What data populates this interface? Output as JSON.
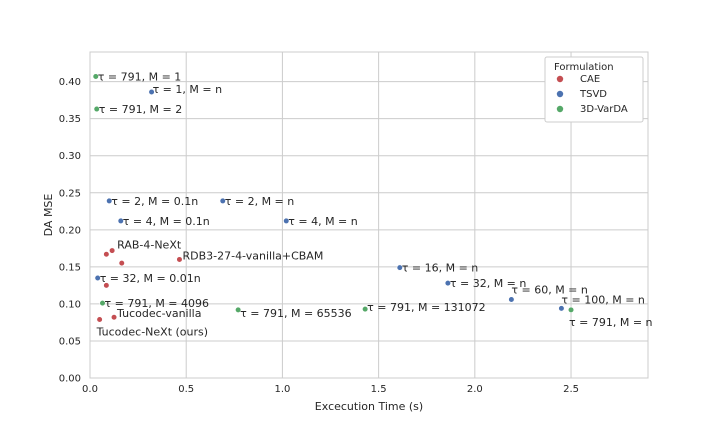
{
  "chart_data": {
    "type": "scatter",
    "xlabel": "Excecution Time (s)",
    "ylabel": "DA MSE",
    "xlim": [
      0,
      2.9
    ],
    "ylim": [
      0,
      0.44
    ],
    "xticks": [
      "0.0",
      "0.5",
      "1.0",
      "1.5",
      "2.0",
      "2.5"
    ],
    "yticks": [
      "0.00",
      "0.05",
      "0.10",
      "0.15",
      "0.20",
      "0.25",
      "0.30",
      "0.35",
      "0.40"
    ],
    "grid": true,
    "legend": {
      "title": "Formulation",
      "placement": "top-right",
      "entries": [
        {
          "name": "CAE",
          "color": "#c44e52"
        },
        {
          "name": "TSVD",
          "color": "#4c72b0"
        },
        {
          "name": "3D-VarDA",
          "color": "#55a868"
        }
      ]
    },
    "series": [
      {
        "name": "CAE",
        "color": "#c44e52",
        "points": [
          {
            "x": 0.115,
            "y": 0.172,
            "label": "RAB-4-NeXt"
          },
          {
            "x": 0.085,
            "y": 0.167,
            "label": ""
          },
          {
            "x": 0.165,
            "y": 0.155,
            "label": ""
          },
          {
            "x": 0.465,
            "y": 0.16,
            "label": "RDB3-27-4-vanilla+CBAM"
          },
          {
            "x": 0.085,
            "y": 0.125,
            "label": ""
          },
          {
            "x": 0.125,
            "y": 0.082,
            "label": "Tucodec-vanilla"
          },
          {
            "x": 0.05,
            "y": 0.079,
            "label": "Tucodec-NeXt (ours)"
          }
        ]
      },
      {
        "name": "TSVD",
        "color": "#4c72b0",
        "points": [
          {
            "x": 0.32,
            "y": 0.386,
            "label": "τ = 1, M = n"
          },
          {
            "x": 0.1,
            "y": 0.239,
            "label": "τ = 2, M = 0.1n"
          },
          {
            "x": 0.69,
            "y": 0.239,
            "label": "τ = 2, M = n"
          },
          {
            "x": 0.16,
            "y": 0.212,
            "label": "τ = 4, M = 0.1n"
          },
          {
            "x": 1.02,
            "y": 0.212,
            "label": "τ = 4, M = n"
          },
          {
            "x": 0.04,
            "y": 0.135,
            "label": "τ = 32, M = 0.01n"
          },
          {
            "x": 1.61,
            "y": 0.149,
            "label": "τ = 16, M = n"
          },
          {
            "x": 1.86,
            "y": 0.128,
            "label": "τ = 32, M = n"
          },
          {
            "x": 2.19,
            "y": 0.106,
            "label": "τ = 60, M = n"
          },
          {
            "x": 2.45,
            "y": 0.094,
            "label": "τ = 100, M = n"
          }
        ]
      },
      {
        "name": "3D-VarDA",
        "color": "#55a868",
        "points": [
          {
            "x": 0.03,
            "y": 0.407,
            "label": "τ = 791, M = 1"
          },
          {
            "x": 0.035,
            "y": 0.363,
            "label": "τ = 791, M = 2"
          },
          {
            "x": 0.065,
            "y": 0.101,
            "label": "τ = 791, M = 4096"
          },
          {
            "x": 0.77,
            "y": 0.092,
            "label": "τ = 791, M = 65536"
          },
          {
            "x": 1.43,
            "y": 0.093,
            "label": "τ = 791, M = 131072"
          },
          {
            "x": 2.5,
            "y": 0.092,
            "label": "τ = 791, M = n"
          }
        ]
      }
    ]
  }
}
